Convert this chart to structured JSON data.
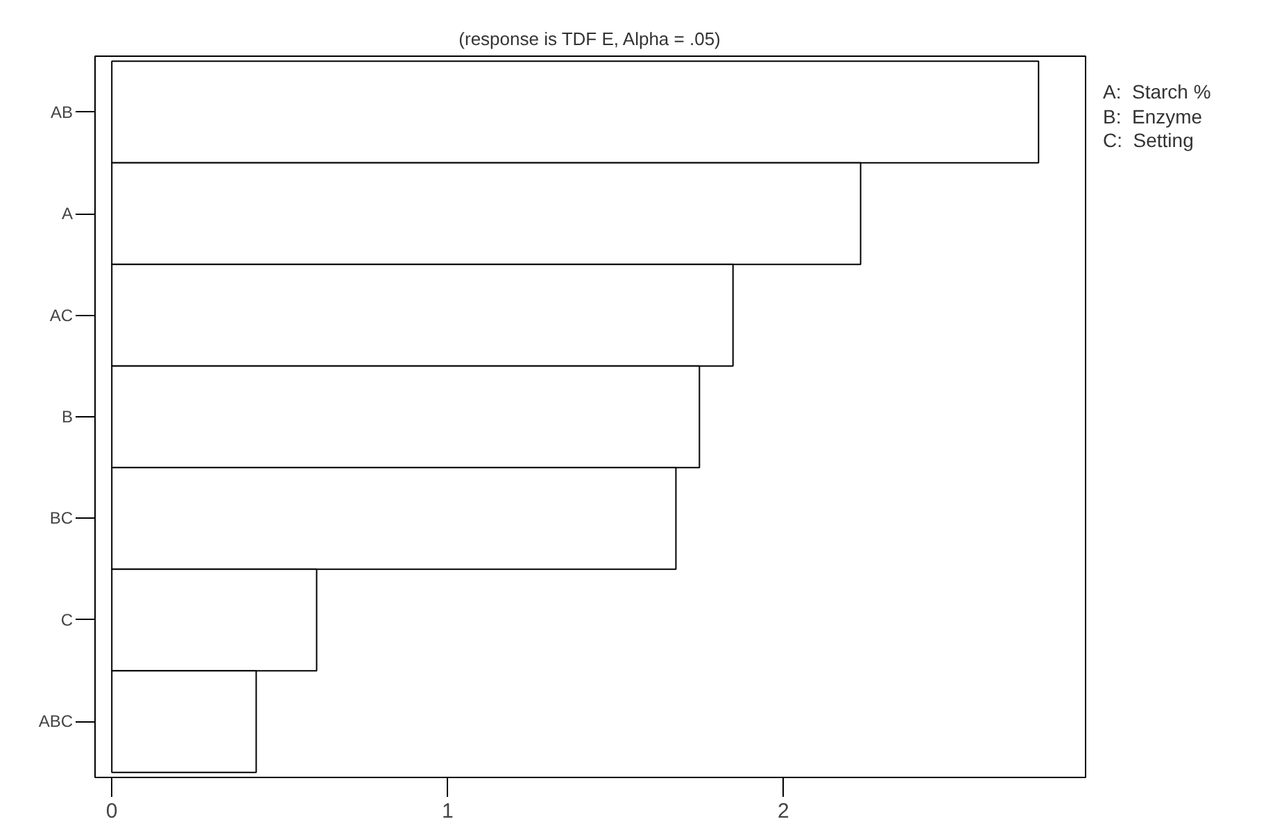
{
  "chart_data": {
    "type": "bar",
    "orientation": "horizontal",
    "title": "(response is TDF E, Alpha = .05)",
    "categories": [
      "AB",
      "A",
      "AC",
      "B",
      "BC",
      "C",
      "ABC"
    ],
    "values": [
      2.76,
      2.23,
      1.85,
      1.75,
      1.68,
      0.61,
      0.43
    ],
    "color": "#ffffff",
    "xlim": [
      -0.05,
      2.9
    ],
    "xticks": [
      0,
      1,
      2
    ],
    "grid": false,
    "annotations": [
      "A:  Starch %",
      "B:  Enzyme",
      "C:  Setting"
    ]
  }
}
